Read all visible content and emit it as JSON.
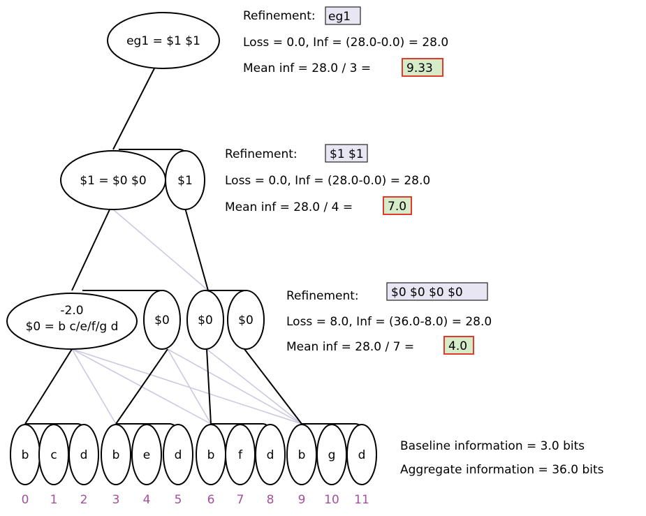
{
  "nodes": {
    "root": "eg1 = $1 $1",
    "l1_main": "$1 = $0 $0",
    "l1_right": "$1",
    "l2_main_loss": "-2.0",
    "l2_main": "$0 = b c/e/f/g d",
    "l2_a": "$0",
    "l2_b": "$0",
    "l2_c": "$0"
  },
  "leaves": [
    "b",
    "c",
    "d",
    "b",
    "e",
    "d",
    "b",
    "f",
    "d",
    "b",
    "g",
    "d"
  ],
  "indices": [
    "0",
    "1",
    "2",
    "3",
    "4",
    "5",
    "6",
    "7",
    "8",
    "9",
    "10",
    "11"
  ],
  "panels": [
    {
      "refinement_label": "Refinement:",
      "refinement_value": "eg1",
      "loss_line": "Loss = 0.0, Inf = (28.0-0.0) = 28.0",
      "mean_line": "Mean inf = 28.0 / 3 =",
      "mean_value": "9.33"
    },
    {
      "refinement_label": "Refinement:",
      "refinement_value": "$1 $1",
      "loss_line": "Loss = 0.0, Inf = (28.0-0.0) = 28.0",
      "mean_line": "Mean inf = 28.0 / 4 =",
      "mean_value": "7.0"
    },
    {
      "refinement_label": "Refinement:",
      "refinement_value": "$0 $0 $0 $0",
      "loss_line": "Loss = 8.0, Inf = (36.0-8.0) = 28.0",
      "mean_line": "Mean inf = 28.0 / 7 =",
      "mean_value": "4.0"
    }
  ],
  "summary": {
    "baseline": "Baseline information = 3.0 bits",
    "aggregate": "Aggregate information = 36.0 bits"
  },
  "colors": {
    "refinement_fill": "#e8e6f3",
    "mean_fill": "#d6ecc9",
    "mean_border": "#e03a2f",
    "index_text": "#a4509a",
    "faint_edge": "#c9c6e0"
  }
}
